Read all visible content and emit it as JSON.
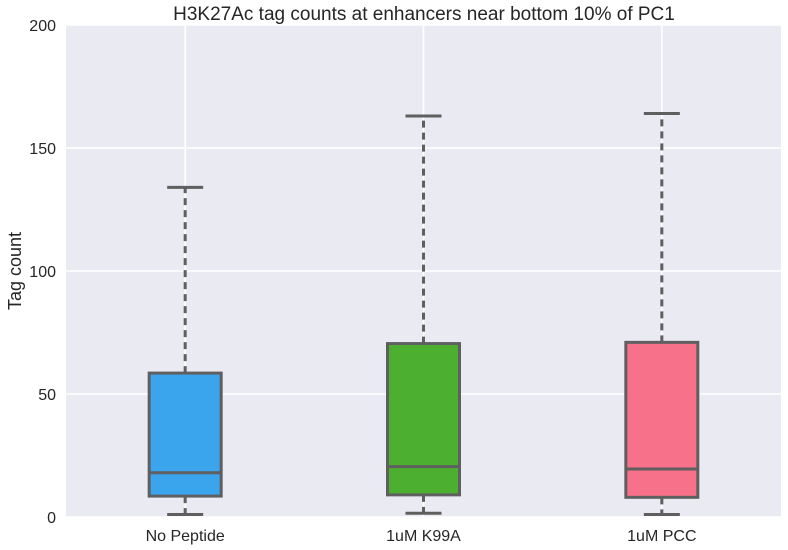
{
  "chart_data": {
    "type": "box",
    "title": "H3K27Ac tag counts at enhancers near bottom 10% of PC1",
    "xlabel": "",
    "ylabel": "Tag count",
    "ylim": [
      0,
      200
    ],
    "yticks": [
      0,
      50,
      100,
      150,
      200
    ],
    "grid": true,
    "categories": [
      "No Peptide",
      "1uM K99A",
      "1uM PCC"
    ],
    "boxes": [
      {
        "category": "No Peptide",
        "whisker_low": 1,
        "q1": 8.5,
        "median": 18,
        "q3": 58.5,
        "whisker_high": 134,
        "color": "#3aa4ed"
      },
      {
        "category": "1uM K99A",
        "whisker_low": 1.5,
        "q1": 9,
        "median": 20.5,
        "q3": 70.5,
        "whisker_high": 163,
        "color": "#4daf2f"
      },
      {
        "category": "1uM PCC",
        "whisker_low": 1,
        "q1": 8,
        "median": 19.5,
        "q3": 71,
        "whisker_high": 164,
        "color": "#f7718a"
      }
    ],
    "style": {
      "background": "#eaeaf2",
      "grid_color": "#ffffff",
      "edge_color": "#5f5f5f"
    }
  }
}
